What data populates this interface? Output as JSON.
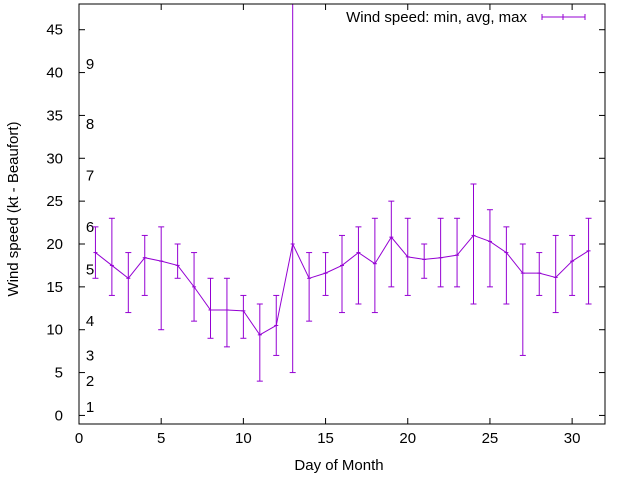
{
  "chart_data": {
    "type": "line",
    "title": "",
    "xlabel": "Day of Month",
    "ylabel": "Wind speed (kt - Beaufort)",
    "xlim": [
      0,
      32
    ],
    "ylim": [
      -1,
      48
    ],
    "x_ticks": [
      0,
      5,
      10,
      15,
      20,
      25,
      30
    ],
    "y_ticks": [
      0,
      5,
      10,
      15,
      20,
      25,
      30,
      35,
      40,
      45
    ],
    "grid": false,
    "legend_position": "top-right",
    "color": "#9400d3",
    "beaufort_labels": [
      {
        "label": "1",
        "value": 1
      },
      {
        "label": "2",
        "value": 4
      },
      {
        "label": "3",
        "value": 7
      },
      {
        "label": "4",
        "value": 11
      },
      {
        "label": "5",
        "value": 17
      },
      {
        "label": "6",
        "value": 22
      },
      {
        "label": "7",
        "value": 28
      },
      {
        "label": "8",
        "value": 34
      },
      {
        "label": "9",
        "value": 41
      }
    ],
    "series": [
      {
        "name": "Wind speed: min, avg, max",
        "points": [
          {
            "x": 1,
            "avg": 19.0,
            "min": 16,
            "max": 22
          },
          {
            "x": 2,
            "avg": 17.5,
            "min": 14,
            "max": 23
          },
          {
            "x": 3,
            "avg": 16.0,
            "min": 12,
            "max": 19
          },
          {
            "x": 4,
            "avg": 18.4,
            "min": 14,
            "max": 21
          },
          {
            "x": 5,
            "avg": 18.0,
            "min": 10,
            "max": 22
          },
          {
            "x": 6,
            "avg": 17.5,
            "min": 16,
            "max": 20
          },
          {
            "x": 7,
            "avg": 15.0,
            "min": 11,
            "max": 19
          },
          {
            "x": 8,
            "avg": 12.3,
            "min": 9,
            "max": 16
          },
          {
            "x": 9,
            "avg": 12.3,
            "min": 8,
            "max": 16
          },
          {
            "x": 10,
            "avg": 12.2,
            "min": 9,
            "max": 14
          },
          {
            "x": 11,
            "avg": 9.4,
            "min": 4,
            "max": 13
          },
          {
            "x": 12,
            "avg": 10.5,
            "min": 7,
            "max": 14
          },
          {
            "x": 13,
            "avg": 20.0,
            "min": 5,
            "max": 48
          },
          {
            "x": 14,
            "avg": 16.0,
            "min": 11,
            "max": 19
          },
          {
            "x": 15,
            "avg": 16.6,
            "min": 14,
            "max": 19
          },
          {
            "x": 16,
            "avg": 17.5,
            "min": 12,
            "max": 21
          },
          {
            "x": 17,
            "avg": 19.0,
            "min": 13,
            "max": 22
          },
          {
            "x": 18,
            "avg": 17.7,
            "min": 12,
            "max": 23
          },
          {
            "x": 19,
            "avg": 20.8,
            "min": 15,
            "max": 25
          },
          {
            "x": 20,
            "avg": 18.5,
            "min": 14,
            "max": 23
          },
          {
            "x": 21,
            "avg": 18.2,
            "min": 16,
            "max": 20
          },
          {
            "x": 22,
            "avg": 18.4,
            "min": 15,
            "max": 23
          },
          {
            "x": 23,
            "avg": 18.7,
            "min": 15,
            "max": 23
          },
          {
            "x": 24,
            "avg": 21.0,
            "min": 13,
            "max": 27
          },
          {
            "x": 25,
            "avg": 20.3,
            "min": 15,
            "max": 24
          },
          {
            "x": 26,
            "avg": 19.0,
            "min": 13,
            "max": 22
          },
          {
            "x": 27,
            "avg": 16.6,
            "min": 7,
            "max": 20
          },
          {
            "x": 28,
            "avg": 16.6,
            "min": 14,
            "max": 19
          },
          {
            "x": 29,
            "avg": 16.1,
            "min": 12,
            "max": 21
          },
          {
            "x": 30,
            "avg": 18.0,
            "min": 14,
            "max": 21
          },
          {
            "x": 31,
            "avg": 19.2,
            "min": 13,
            "max": 23
          }
        ]
      }
    ]
  }
}
